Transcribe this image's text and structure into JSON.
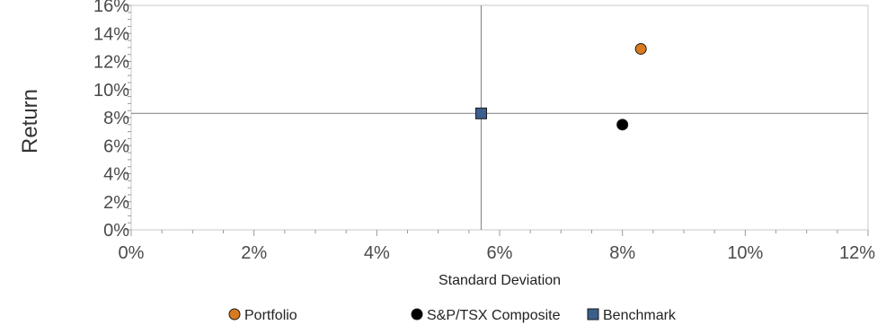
{
  "chart_data": {
    "type": "scatter",
    "xlabel": "Standard Deviation",
    "ylabel": "Return",
    "xlim": [
      0,
      12
    ],
    "ylim": [
      0,
      16
    ],
    "x_ticks": [
      0,
      2,
      4,
      6,
      8,
      10,
      12
    ],
    "y_ticks": [
      0,
      2,
      4,
      6,
      8,
      10,
      12,
      14,
      16
    ],
    "x_tick_labels": [
      "0%",
      "2%",
      "4%",
      "6%",
      "8%",
      "10%",
      "12%"
    ],
    "y_tick_labels": [
      "0%",
      "2%",
      "4%",
      "6%",
      "8%",
      "10%",
      "12%",
      "14%",
      "16%"
    ],
    "grid": false,
    "legend_position": "bottom",
    "reference_lines": {
      "vertical_x": 5.7,
      "horizontal_y": 8.3
    },
    "series": [
      {
        "name": "Portfolio",
        "marker": "circle",
        "color": "#d97a1e",
        "x": [
          8.3
        ],
        "y": [
          12.9
        ]
      },
      {
        "name": "S&P/TSX Composite",
        "marker": "circle",
        "color": "#000000",
        "x": [
          8.0
        ],
        "y": [
          7.5
        ]
      },
      {
        "name": "Benchmark",
        "marker": "square",
        "color": "#3b5e8c",
        "x": [
          5.7
        ],
        "y": [
          8.3
        ]
      }
    ]
  }
}
